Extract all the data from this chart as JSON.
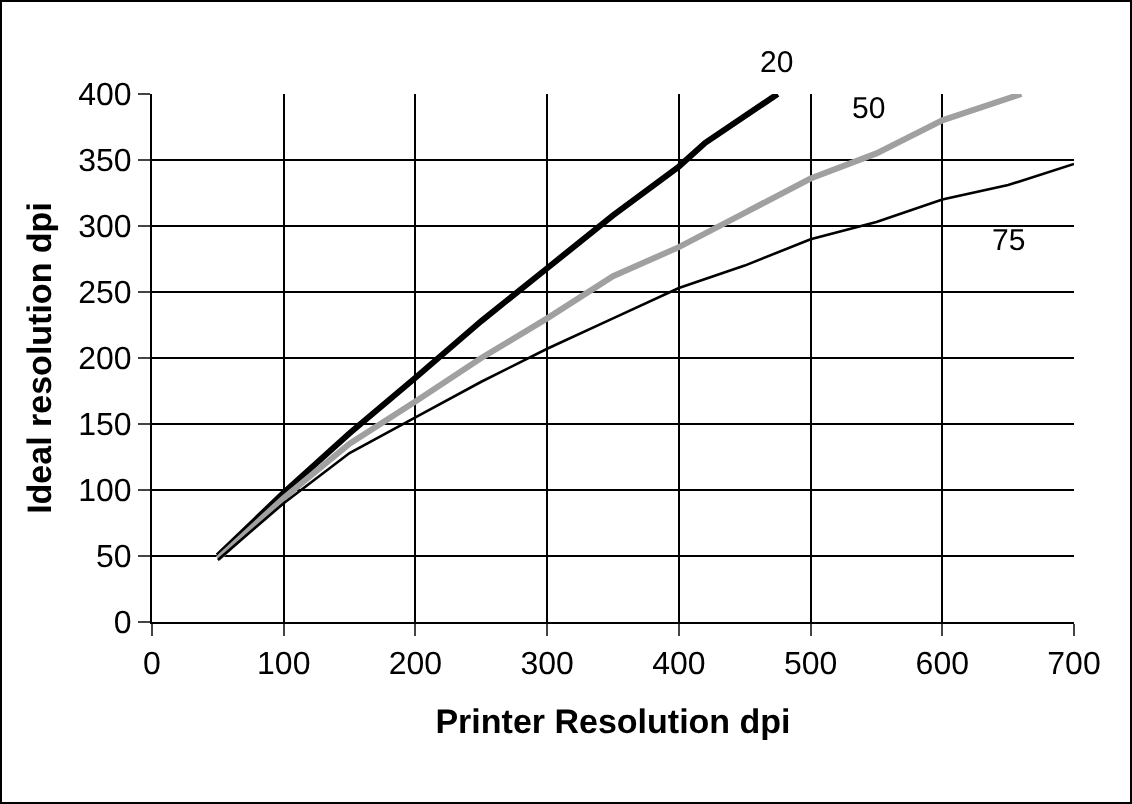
{
  "chart_data": {
    "type": "line",
    "xlabel": "Printer Resolution dpi",
    "ylabel": "Ideal resolution dpi",
    "xlim": [
      0,
      700
    ],
    "xticks": [
      0,
      100,
      200,
      300,
      400,
      500,
      600,
      700
    ],
    "ylim": [
      0,
      400
    ],
    "yticks": [
      0,
      50,
      100,
      150,
      200,
      250,
      300,
      350,
      400
    ],
    "grid": true,
    "legend": false,
    "marker": "none",
    "line_style": "solid",
    "series": [
      {
        "name": "20",
        "color": "#000000",
        "x": [
          50,
          100,
          150,
          200,
          250,
          300,
          350,
          400,
          420,
          475
        ],
        "values": [
          50,
          98,
          143,
          185,
          228,
          268,
          308,
          345,
          363,
          400
        ]
      },
      {
        "name": "50",
        "color": "#a0a0a0",
        "x": [
          50,
          100,
          150,
          200,
          250,
          300,
          350,
          400,
          450,
          500,
          550,
          600,
          660
        ],
        "values": [
          48,
          94,
          135,
          167,
          200,
          230,
          262,
          284,
          310,
          336,
          355,
          380,
          400
        ]
      },
      {
        "name": "75",
        "color": "#000000",
        "x": [
          50,
          100,
          150,
          200,
          250,
          300,
          350,
          400,
          450,
          500,
          550,
          600,
          650,
          700
        ],
        "values": [
          47,
          90,
          128,
          155,
          182,
          207,
          230,
          253,
          270,
          290,
          303,
          320,
          331,
          347
        ]
      }
    ]
  }
}
